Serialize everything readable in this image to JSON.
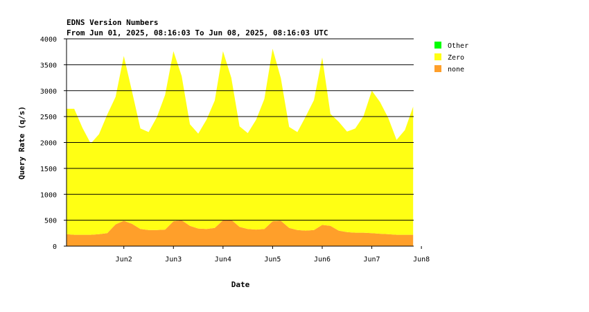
{
  "chart_data": {
    "type": "area",
    "stacked": true,
    "title": "EDNS Version Numbers",
    "subtitle": "From Jun 01, 2025, 08:16:03 To Jun 08, 2025, 08:16:03 UTC",
    "xlabel": "Date",
    "ylabel": "Query Rate (q/s)",
    "ylim": [
      0,
      4000
    ],
    "yticks": [
      0,
      500,
      1000,
      1500,
      2000,
      2500,
      3000,
      3500,
      4000
    ],
    "grid": true,
    "legend_position": "right",
    "xlim": [
      "2025-06-01 08:16",
      "2025-06-08 08:16"
    ],
    "xticks": [
      {
        "label": "Jun2",
        "day": 2
      },
      {
        "label": "Jun3",
        "day": 3
      },
      {
        "label": "Jun4",
        "day": 4
      },
      {
        "label": "Jun5",
        "day": 5
      },
      {
        "label": "Jun6",
        "day": 6
      },
      {
        "label": "Jun7",
        "day": 7
      },
      {
        "label": "Jun8",
        "day": 8
      }
    ],
    "x": [
      "2025-06-01 08:00",
      "2025-06-01 12:00",
      "2025-06-01 16:00",
      "2025-06-01 20:00",
      "2025-06-02 00:00",
      "2025-06-02 04:00",
      "2025-06-02 08:00",
      "2025-06-02 12:00",
      "2025-06-02 16:00",
      "2025-06-02 20:00",
      "2025-06-03 00:00",
      "2025-06-03 04:00",
      "2025-06-03 08:00",
      "2025-06-03 12:00",
      "2025-06-03 16:00",
      "2025-06-03 20:00",
      "2025-06-04 00:00",
      "2025-06-04 04:00",
      "2025-06-04 08:00",
      "2025-06-04 12:00",
      "2025-06-04 16:00",
      "2025-06-04 20:00",
      "2025-06-05 00:00",
      "2025-06-05 04:00",
      "2025-06-05 08:00",
      "2025-06-05 12:00",
      "2025-06-05 16:00",
      "2025-06-05 20:00",
      "2025-06-06 00:00",
      "2025-06-06 04:00",
      "2025-06-06 08:00",
      "2025-06-06 12:00",
      "2025-06-06 16:00",
      "2025-06-06 20:00",
      "2025-06-07 00:00",
      "2025-06-07 04:00",
      "2025-06-07 08:00",
      "2025-06-07 12:00",
      "2025-06-07 16:00",
      "2025-06-07 20:00",
      "2025-06-08 00:00",
      "2025-06-08 04:00",
      "2025-06-08 08:00"
    ],
    "series": [
      {
        "name": "none",
        "color": "#ff9f2a",
        "values": [
          230,
          220,
          220,
          220,
          230,
          250,
          420,
          490,
          430,
          330,
          310,
          310,
          320,
          480,
          500,
          390,
          340,
          330,
          350,
          500,
          510,
          370,
          330,
          320,
          330,
          480,
          490,
          350,
          310,
          300,
          310,
          410,
          390,
          300,
          270,
          260,
          260,
          250,
          240,
          230,
          220,
          220,
          220
        ]
      },
      {
        "name": "Zero",
        "color": "#ffff14",
        "values": [
          2420,
          2430,
          2060,
          1760,
          1930,
          2290,
          2460,
          3180,
          2550,
          1940,
          1890,
          2180,
          2600,
          3280,
          2780,
          1960,
          1830,
          2110,
          2460,
          3260,
          2740,
          1940,
          1850,
          2120,
          2510,
          3330,
          2750,
          1950,
          1890,
          2200,
          2510,
          3230,
          2160,
          2100,
          1940,
          2010,
          2250,
          2750,
          2540,
          2240,
          1830,
          2020,
          2470
        ]
      },
      {
        "name": "Other",
        "color": "#00ff00",
        "values": [
          0,
          0,
          0,
          0,
          0,
          0,
          0,
          0,
          0,
          0,
          0,
          0,
          0,
          0,
          0,
          0,
          0,
          0,
          0,
          0,
          0,
          0,
          0,
          0,
          0,
          0,
          0,
          0,
          0,
          0,
          0,
          0,
          0,
          0,
          0,
          0,
          0,
          0,
          0,
          0,
          0,
          0,
          0
        ]
      }
    ],
    "legend": [
      {
        "name": "Other",
        "color": "#00ff00"
      },
      {
        "name": "Zero",
        "color": "#ffff14"
      },
      {
        "name": "none",
        "color": "#ff9f2a"
      }
    ]
  }
}
